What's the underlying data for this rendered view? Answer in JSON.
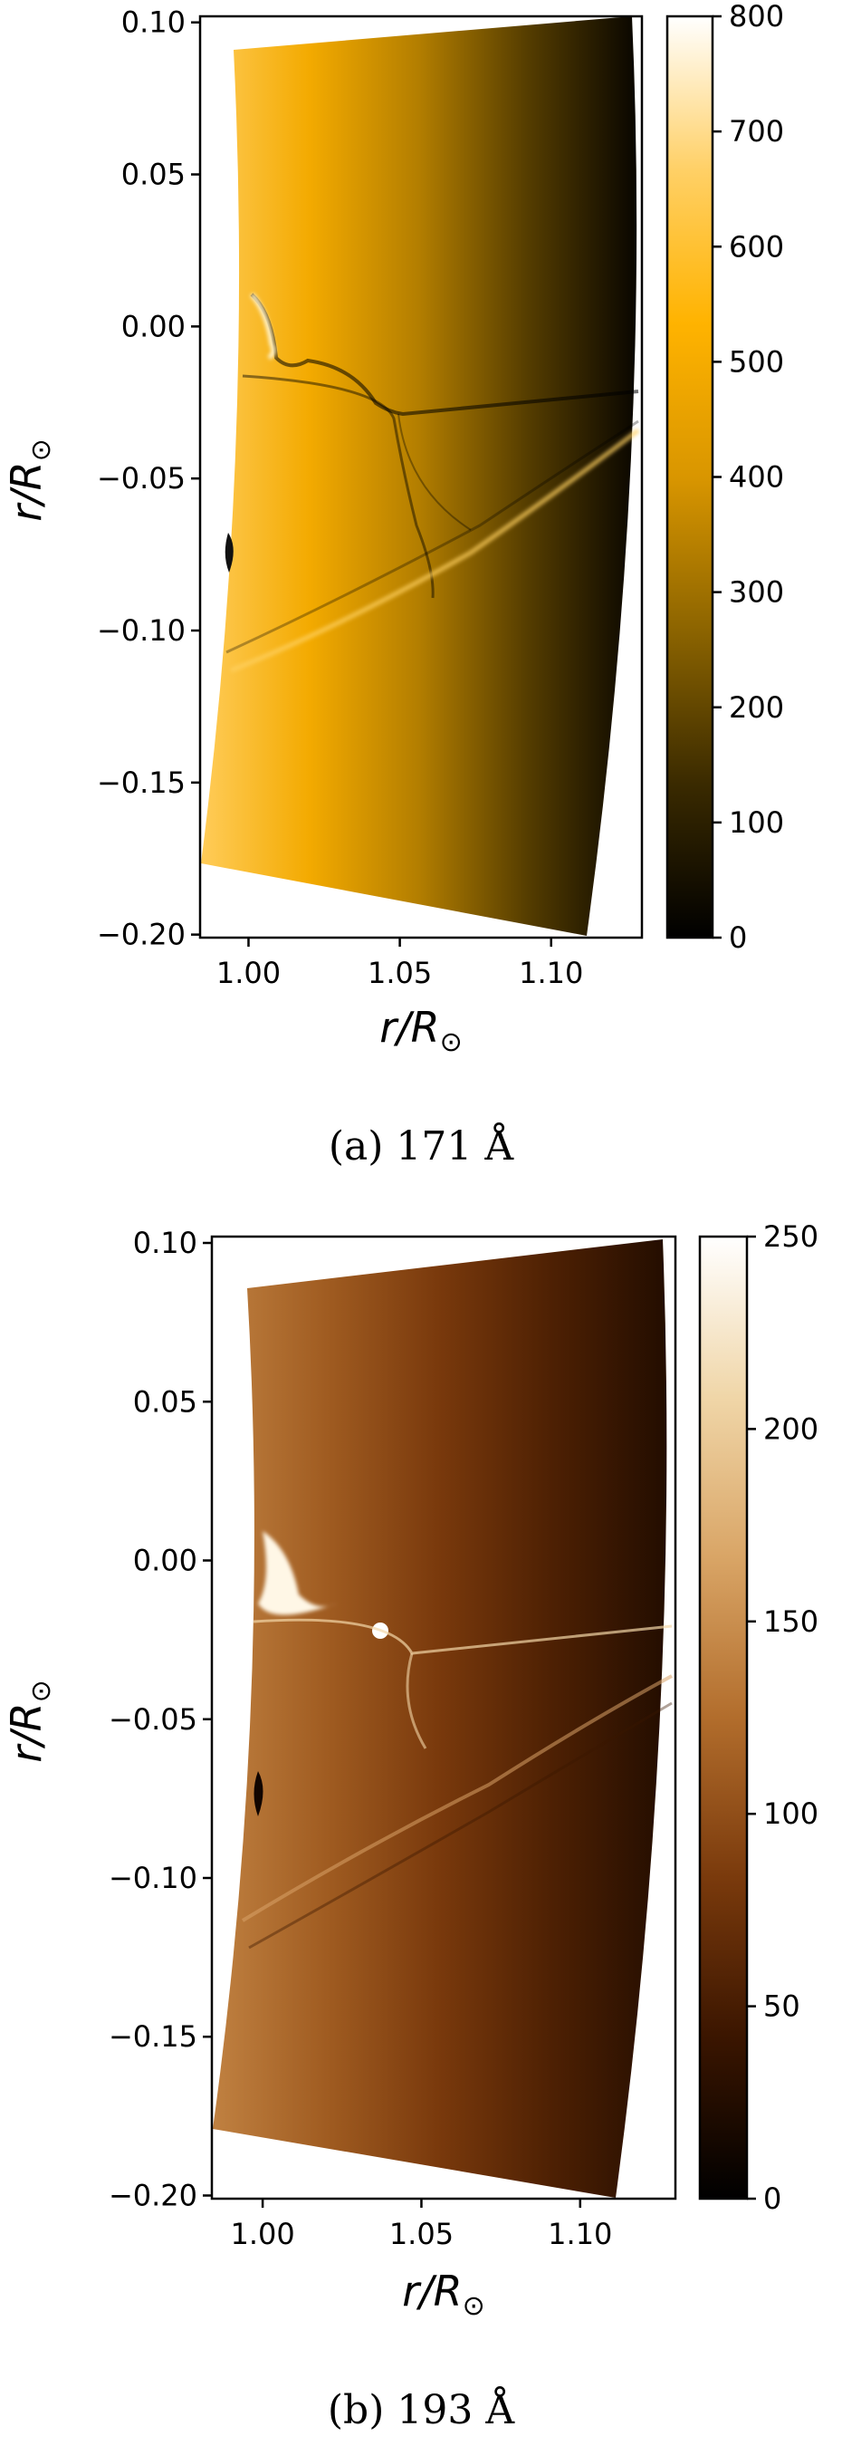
{
  "chart_data": [
    {
      "type": "heatmap",
      "caption": "(a) 171 Å",
      "xlabel": "r/R⊙",
      "ylabel": "r/R⊙",
      "xlim": [
        0.984,
        1.13
      ],
      "ylim": [
        -0.201,
        0.102
      ],
      "xticks": [
        1.0,
        1.05,
        1.1
      ],
      "xtick_labels": [
        "1.00",
        "1.05",
        "1.10"
      ],
      "yticks": [
        0.1,
        0.05,
        0.0,
        -0.05,
        -0.1,
        -0.15,
        -0.2
      ],
      "ytick_labels": [
        "0.10",
        "0.05",
        "0.00",
        "−0.05",
        "−0.10",
        "−0.15",
        "−0.20"
      ],
      "colorbar": {
        "min": 0,
        "max": 800,
        "ticks": [
          0,
          100,
          200,
          300,
          400,
          500,
          600,
          700,
          800
        ],
        "tick_labels": [
          "0",
          "100",
          "200",
          "300",
          "400",
          "500",
          "600",
          "700",
          "800"
        ],
        "colors": [
          "#000000",
          "#3a2a00",
          "#8c6400",
          "#d99600",
          "#ffb300",
          "#ffd066",
          "#ffffff"
        ]
      },
      "grid": false,
      "intensity_left_edge": 650,
      "intensity_right_edge": 20
    },
    {
      "type": "heatmap",
      "caption": "(b) 193 Å",
      "xlabel": "r/R⊙",
      "ylabel": "r/R⊙",
      "xlim": [
        0.984,
        1.13
      ],
      "ylim": [
        -0.201,
        0.102
      ],
      "xticks": [
        1.0,
        1.05,
        1.1
      ],
      "xtick_labels": [
        "1.00",
        "1.05",
        "1.10"
      ],
      "yticks": [
        0.1,
        0.05,
        0.0,
        -0.05,
        -0.1,
        -0.15,
        -0.2
      ],
      "ytick_labels": [
        "0.10",
        "0.05",
        "0.00",
        "−0.05",
        "−0.10",
        "−0.15",
        "−0.20"
      ],
      "colorbar": {
        "min": 0,
        "max": 250,
        "ticks": [
          0,
          50,
          100,
          150,
          200,
          250
        ],
        "tick_labels": [
          "0",
          "50",
          "100",
          "150",
          "200",
          "250"
        ],
        "colors": [
          "#000000",
          "#3a1500",
          "#7a3a0c",
          "#b26d2c",
          "#d9a566",
          "#f0d6a8",
          "#ffffff"
        ]
      },
      "grid": false,
      "intensity_left_edge": 140,
      "intensity_right_edge": 25
    }
  ]
}
